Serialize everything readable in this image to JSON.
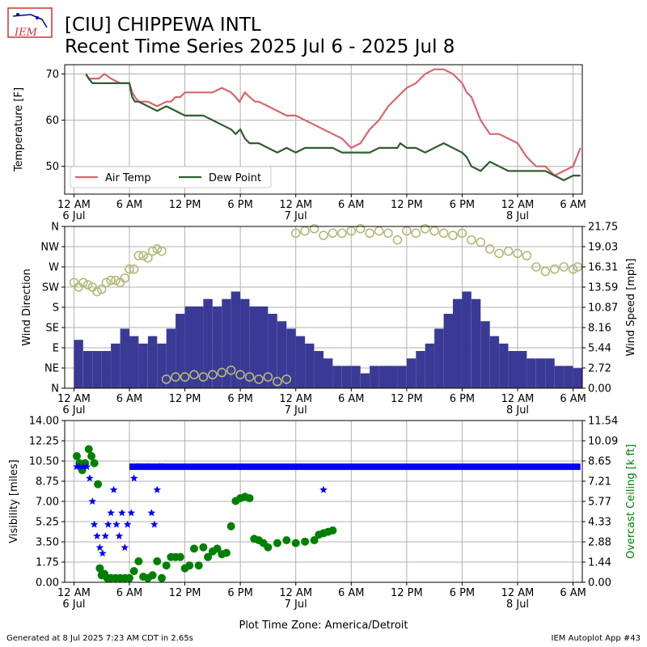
{
  "header": {
    "logo_text": "IEM",
    "title_line1": "[CIU] CHIPPEWA INTL",
    "title_line2": "Recent Time Series 2025 Jul 6 - 2025 Jul 8"
  },
  "footer": {
    "left": "Generated at 8 Jul 2025 7:23 AM CDT in 2.65s",
    "right": "IEM Autoplot App #43"
  },
  "colors": {
    "air_temp": "#d9656b",
    "dew_point": "#2e5e2e",
    "wind_dir": "#b5b87a",
    "wind_speed": "#3a3a96",
    "visibility": "#0000ff",
    "ceiling": "#008000"
  },
  "chart_data": [
    {
      "type": "line",
      "xlim_hours": [
        -1,
        55
      ],
      "ylim": [
        44,
        72
      ],
      "ylabel": "Temperature [F]",
      "y_ticks": [
        50,
        60,
        70
      ],
      "grid": true,
      "legend_position": "lower-left",
      "x_ticks": [
        {
          "h": 0,
          "label": "12 AM",
          "sub": "6 Jul"
        },
        {
          "h": 6,
          "label": "6 AM",
          "sub": ""
        },
        {
          "h": 12,
          "label": "12 PM",
          "sub": ""
        },
        {
          "h": 18,
          "label": "6 PM",
          "sub": ""
        },
        {
          "h": 24,
          "label": "12 AM",
          "sub": "7 Jul"
        },
        {
          "h": 30,
          "label": "6 AM",
          "sub": ""
        },
        {
          "h": 36,
          "label": "12 PM",
          "sub": ""
        },
        {
          "h": 42,
          "label": "6 PM",
          "sub": ""
        },
        {
          "h": 48,
          "label": "12 AM",
          "sub": "8 Jul"
        },
        {
          "h": 54,
          "label": "6 AM",
          "sub": ""
        }
      ],
      "series": [
        {
          "name": "Air Temp",
          "x": [
            1.3,
            1.6,
            2.7,
            3.3,
            4.0,
            5.0,
            6.0,
            6.3,
            6.6,
            7.0,
            8.0,
            9.0,
            10.0,
            10.5,
            11.0,
            11.5,
            12.0,
            13.0,
            14.0,
            15.0,
            16.0,
            17.0,
            17.5,
            17.9,
            18.5,
            19.0,
            19.6,
            20.0,
            21.0,
            22.0,
            23.0,
            24.0,
            25.0,
            26.0,
            27.0,
            28.0,
            29.0,
            30.0,
            31.0,
            32.0,
            33.0,
            34.0,
            35.0,
            36.0,
            37.0,
            38.0,
            39.0,
            40.0,
            41.0,
            42.0,
            42.5,
            43.0,
            44.0,
            45.0,
            46.0,
            47.0,
            48.0,
            49.0,
            50.0,
            51.0,
            52.0,
            53.0,
            54.0,
            54.8
          ],
          "y": [
            70,
            69,
            69,
            70,
            69,
            68,
            68,
            66,
            65,
            64,
            64,
            63,
            64,
            64,
            65,
            65,
            66,
            66,
            66,
            66,
            67,
            66,
            65,
            64,
            66,
            65,
            64,
            64,
            63,
            62,
            61,
            61,
            60,
            59,
            58,
            57,
            56,
            54,
            55,
            58,
            60,
            63,
            65,
            67,
            68,
            70,
            71,
            71,
            70,
            68,
            66,
            65,
            60,
            57,
            57,
            56,
            55,
            52,
            50,
            50,
            48,
            49,
            50,
            54
          ]
        },
        {
          "name": "Dew Point",
          "x": [
            1.3,
            1.6,
            2.0,
            3.0,
            4.0,
            5.0,
            6.0,
            6.3,
            6.6,
            7.0,
            8.0,
            9.0,
            10.0,
            11.0,
            12.0,
            13.0,
            14.0,
            15.0,
            16.0,
            17.0,
            17.5,
            18.0,
            18.5,
            19.0,
            19.5,
            20.0,
            21.0,
            22.0,
            23.0,
            24.0,
            25.0,
            26.0,
            27.0,
            28.0,
            29.0,
            30.0,
            31.0,
            32.0,
            33.0,
            34.0,
            35.0,
            35.3,
            36.0,
            37.0,
            38.0,
            39.0,
            40.0,
            41.0,
            42.0,
            42.5,
            43.0,
            44.0,
            45.0,
            46.0,
            47.0,
            48.0,
            49.0,
            50.0,
            51.0,
            52.0,
            53.0,
            54.0,
            54.8
          ],
          "y": [
            70,
            69,
            68,
            68,
            68,
            68,
            68,
            65,
            64,
            64,
            63,
            62,
            63,
            62,
            61,
            61,
            61,
            60,
            59,
            58,
            57,
            58,
            56,
            55,
            55,
            55,
            54,
            53,
            54,
            53,
            54,
            54,
            54,
            54,
            53,
            53,
            53,
            53,
            54,
            54,
            54,
            55,
            54,
            54,
            53,
            54,
            55,
            54,
            53,
            52,
            50,
            49,
            51,
            50,
            49,
            49,
            49,
            49,
            49,
            48,
            47,
            48,
            48
          ]
        }
      ]
    },
    {
      "type": "bar",
      "xlim_hours": [
        -1,
        55
      ],
      "left_axis": {
        "label": "Wind Direction",
        "ticks": [
          "N",
          "NE",
          "E",
          "SE",
          "S",
          "SW",
          "W",
          "NW",
          "N"
        ],
        "ylim_deg": [
          0,
          360
        ]
      },
      "right_axis": {
        "label": "Wind Speed [mph]",
        "ticks": [
          "0.00",
          "2.72",
          "5.44",
          "8.16",
          "10.87",
          "13.59",
          "16.31",
          "19.03",
          "21.75"
        ],
        "ylim": [
          0,
          21.75
        ]
      },
      "grid": true,
      "series": [
        {
          "name": "Wind Speed",
          "x": [
            0,
            1,
            2,
            3,
            4,
            5,
            6,
            7,
            8,
            9,
            10,
            11,
            12,
            13,
            14,
            15,
            16,
            17,
            18,
            19,
            20,
            21,
            22,
            23,
            24,
            25,
            26,
            27,
            28,
            29,
            30,
            31,
            32,
            33,
            34,
            35,
            36,
            37,
            38,
            39,
            40,
            41,
            42,
            43,
            44,
            45,
            46,
            47,
            48,
            49,
            50,
            51,
            52,
            53,
            54
          ],
          "y": [
            6.5,
            5,
            5,
            5,
            6,
            8,
            7,
            6,
            7,
            6,
            8,
            10,
            11,
            11,
            12,
            11,
            12,
            13,
            12,
            11,
            11,
            10,
            9,
            8,
            7,
            6,
            5,
            4,
            3,
            3,
            3,
            2,
            3,
            3,
            3,
            3,
            4,
            5,
            6,
            8,
            10,
            12,
            13,
            12,
            9,
            7,
            6,
            5,
            5,
            4,
            4,
            4,
            3,
            3,
            2.7
          ]
        },
        {
          "name": "Wind Direction",
          "x": [
            0,
            0.5,
            1,
            1.5,
            2,
            2.5,
            3,
            3.5,
            4,
            4.5,
            5,
            5.5,
            6,
            6.5,
            7,
            7.5,
            8,
            8.5,
            9,
            9.5,
            10,
            11,
            12,
            13,
            14,
            15,
            16,
            17,
            18,
            19,
            20,
            21,
            22,
            23,
            24,
            25,
            26,
            27,
            28,
            29,
            30,
            31,
            32,
            33,
            34,
            35,
            36,
            37,
            38,
            39,
            40,
            41,
            42,
            43,
            44,
            45,
            46,
            47,
            48,
            49,
            50,
            51,
            52,
            53,
            54,
            54.5
          ],
          "y": [
            235,
            225,
            235,
            230,
            225,
            215,
            220,
            235,
            240,
            240,
            235,
            245,
            265,
            265,
            295,
            295,
            290,
            305,
            310,
            305,
            20,
            25,
            25,
            30,
            25,
            30,
            35,
            40,
            30,
            25,
            20,
            25,
            15,
            20,
            345,
            350,
            355,
            340,
            345,
            345,
            350,
            355,
            345,
            350,
            345,
            330,
            350,
            345,
            355,
            350,
            345,
            340,
            345,
            330,
            325,
            310,
            300,
            305,
            300,
            295,
            270,
            260,
            265,
            270,
            265,
            270
          ]
        }
      ]
    },
    {
      "type": "scatter",
      "xlim_hours": [
        -1,
        55
      ],
      "left_axis": {
        "label": "Visibility [miles]",
        "ticks": [
          "0.00",
          "1.75",
          "3.50",
          "5.25",
          "7.00",
          "8.75",
          "10.50",
          "12.25",
          "14.00"
        ],
        "ylim": [
          0,
          14
        ]
      },
      "right_axis": {
        "label": "Overcast Ceiling [k ft]",
        "ticks": [
          "0.00",
          "1.44",
          "2.88",
          "4.33",
          "5.77",
          "7.21",
          "8.65",
          "10.09",
          "11.54"
        ],
        "ylim": [
          0,
          11.54
        ]
      },
      "grid": true,
      "xlabel": "Plot Time Zone: America/Detroit",
      "series": [
        {
          "name": "Visibility",
          "x": [
            0.3,
            0.6,
            1.0,
            1.4,
            1.7,
            2.0,
            2.2,
            2.5,
            2.8,
            3.1,
            3.4,
            3.7,
            4.0,
            4.3,
            4.6,
            4.9,
            5.2,
            5.5,
            5.8,
            6.2,
            6.5,
            6.8,
            7.1,
            7.4,
            8.1,
            8.4,
            8.7,
            9.0,
            9.3,
            9.6
          ],
          "y": [
            10,
            10,
            10,
            10,
            9,
            7,
            5,
            4,
            3,
            2.5,
            4,
            5,
            6,
            8,
            5,
            4,
            6,
            3,
            5,
            6,
            9,
            10,
            10,
            10,
            10,
            6,
            5,
            8,
            10,
            10
          ],
          "extra_points": [
            {
              "x": 27,
              "y": 8
            }
          ],
          "flat_segment": {
            "x_start": 6.0,
            "x_end": 54.8,
            "y": 10
          }
        },
        {
          "name": "Overcast Ceiling",
          "x": [
            0.3,
            0.6,
            0.9,
            1.2,
            1.6,
            1.9,
            2.2,
            2.6,
            2.8,
            3.0,
            3.3,
            3.6,
            4.0,
            4.5,
            5.0,
            5.5,
            6.0,
            6.5,
            7.0,
            7.5,
            8.0,
            8.5,
            9.0,
            9.5,
            10.0,
            10.5,
            11.0,
            11.5,
            12.0,
            12.5,
            13.0,
            13.5,
            14.0,
            14.5,
            15.0,
            15.5,
            16.0,
            16.5,
            17.0,
            17.5,
            18.0,
            18.5,
            19.0,
            19.5,
            20.0,
            20.5,
            21.0,
            22.0,
            23.0,
            24.0,
            25.0,
            26.0,
            26.5,
            27.0,
            27.5,
            28.0
          ],
          "y": [
            9,
            8.5,
            8,
            8.5,
            9.5,
            9,
            8.5,
            7,
            1,
            0.5,
            0.6,
            0.3,
            0.3,
            0.3,
            0.3,
            0.3,
            0.3,
            0.8,
            1.5,
            0.4,
            0.3,
            0.5,
            1.5,
            0.3,
            1.2,
            1.8,
            1.8,
            1.8,
            1,
            1.2,
            2.4,
            1.2,
            2.5,
            1.8,
            2.2,
            2.4,
            2.0,
            2.1,
            4.0,
            5.8,
            6.0,
            6.1,
            6.0,
            3.1,
            3.0,
            2.8,
            2.5,
            2.8,
            3.0,
            2.8,
            2.9,
            3.0,
            3.4,
            3.5,
            3.6,
            3.7
          ]
        }
      ]
    }
  ]
}
